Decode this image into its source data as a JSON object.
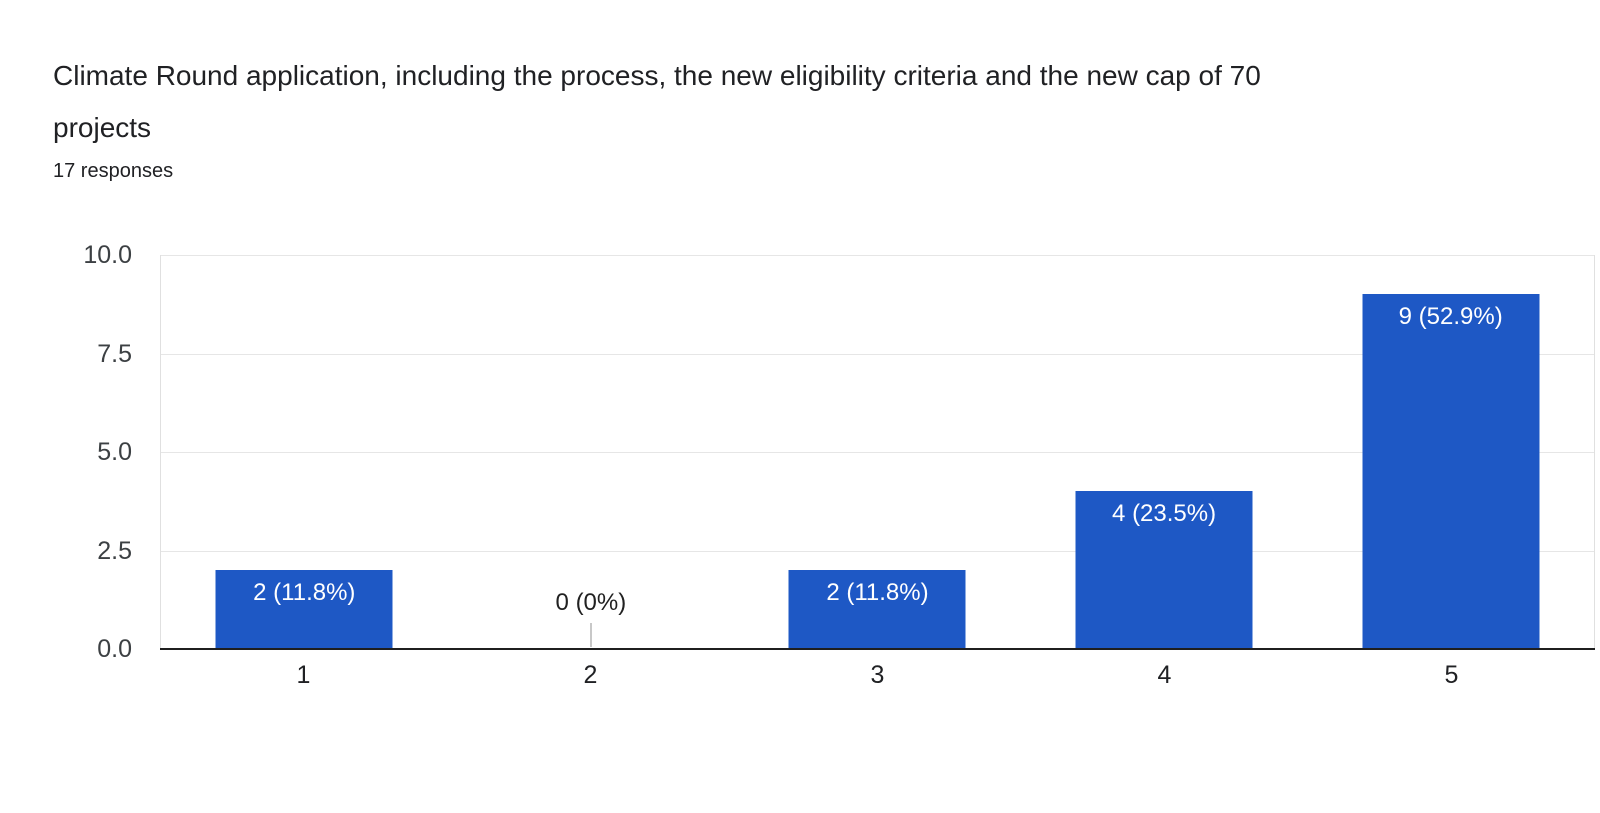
{
  "header": {
    "title_lines": [
      "Climate Round application, including the process, the new eligibility criteria and the new cap of 70",
      "projects"
    ],
    "response_count": "17 responses"
  },
  "chart_data": {
    "type": "bar",
    "title": "Climate Round application, including the process, the new eligibility criteria and the new cap of 70 projects",
    "subtitle": "17 responses",
    "categories": [
      "1",
      "2",
      "3",
      "4",
      "5"
    ],
    "values": [
      2,
      0,
      2,
      4,
      9
    ],
    "bar_labels": [
      "2 (11.8%)",
      "0 (0%)",
      "2 (11.8%)",
      "4 (23.5%)",
      "9 (52.9%)"
    ],
    "total_responses": 17,
    "ylim": [
      0,
      10
    ],
    "yticks": [
      0,
      2.5,
      5,
      7.5,
      10
    ],
    "ytick_labels": [
      "0.0",
      "2.5",
      "5.0",
      "7.5",
      "10.0"
    ],
    "grid": true,
    "legend": "none",
    "xlabel": "",
    "ylabel": "",
    "bar_color": "#1e58c5",
    "bar_label_color_inside": "#ffffff",
    "bar_label_color_zero": "#212121",
    "gridline_color": "#e6e6e6",
    "axis_line_color": "#1f1f1f"
  }
}
